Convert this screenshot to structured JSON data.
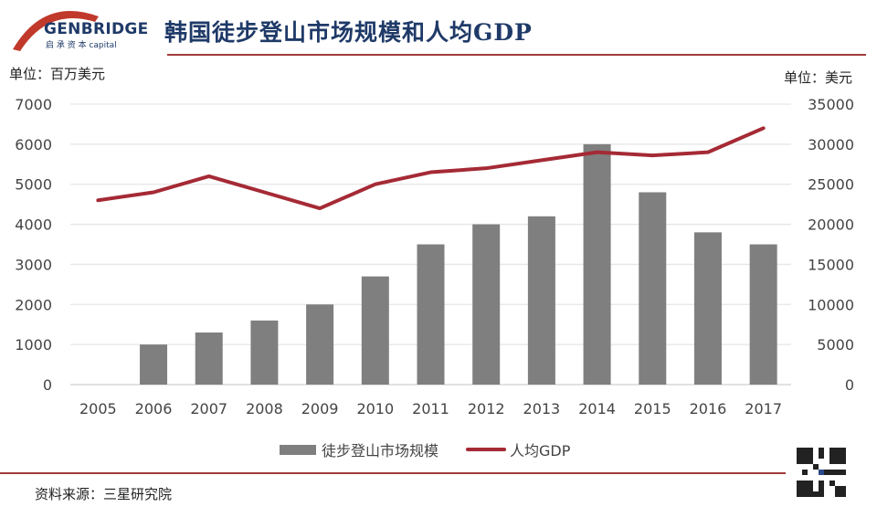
{
  "logo": {
    "brand": "GENBRIDGE",
    "sub": "启 承 资 本 capital"
  },
  "title": "韩国徒步登山市场规模和人均GDP",
  "unit_left": "单位：百万美元",
  "unit_right": "单位：美元",
  "source": "资料来源：三星研究院",
  "colors": {
    "bar": "#7f7f7f",
    "line": "#a52a35",
    "accent": "#1f3a68",
    "rule": "#a33a3a"
  },
  "qr_icon": "qr-code-icon",
  "chart_data": {
    "type": "bar+line",
    "categories": [
      "2005",
      "2006",
      "2007",
      "2008",
      "2009",
      "2010",
      "2011",
      "2012",
      "2013",
      "2014",
      "2015",
      "2016",
      "2017"
    ],
    "series": [
      {
        "name": "徒步登山市场规模",
        "type": "bar",
        "axis": "left",
        "values": [
          0,
          1000,
          1300,
          1600,
          2000,
          2700,
          3500,
          4000,
          4200,
          6000,
          4800,
          3800,
          3500
        ]
      },
      {
        "name": "人均GDP",
        "type": "line",
        "axis": "right",
        "values": [
          23000,
          24000,
          26000,
          24000,
          22000,
          25000,
          26500,
          27000,
          28000,
          29000,
          28600,
          29000,
          32000
        ]
      }
    ],
    "y_left": {
      "range": [
        0,
        7000
      ],
      "ticks": [
        "0",
        "1000",
        "2000",
        "3000",
        "4000",
        "5000",
        "6000",
        "7000"
      ]
    },
    "y_right": {
      "range": [
        0,
        35000
      ],
      "ticks": [
        "0",
        "5000",
        "10000",
        "15000",
        "20000",
        "25000",
        "30000",
        "35000"
      ]
    },
    "grid": true,
    "legend": "bottom"
  }
}
